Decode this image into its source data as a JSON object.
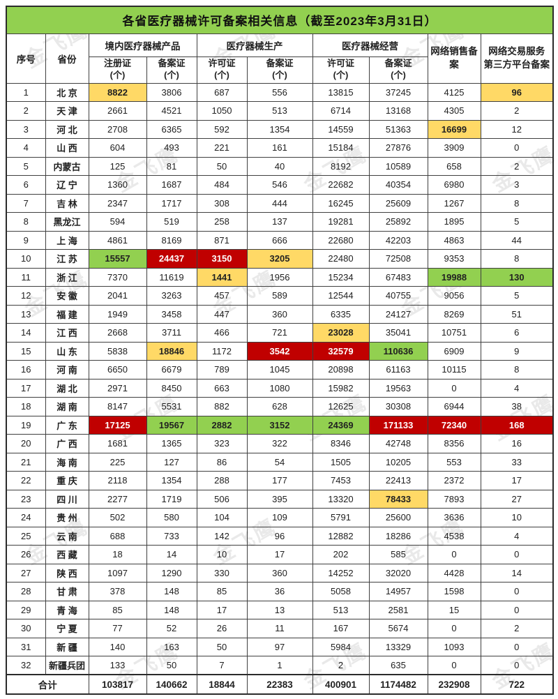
{
  "title": "各省医疗器械许可备案相关信息（截至2023年3月31日）",
  "watermark_text": "金飞鹰",
  "colors": {
    "title_green": "#92D050",
    "highlight_yellow": "#FFD966",
    "highlight_green": "#92D050",
    "highlight_red": "#C00000"
  },
  "header": {
    "col_no": "序号",
    "col_province": "省份",
    "group_domestic": "境内医疗器械产品",
    "group_production": "医疗器械生产",
    "group_operation": "医疗器械经营",
    "sub_registration": "注册证",
    "sub_record": "备案证",
    "sub_license": "许可证",
    "unit": "(个)",
    "col_online_sales": "网络销售备案",
    "col_platform_line1": "网络交易服务",
    "col_platform_line2": "第三方平台备案"
  },
  "chart_data": {
    "type": "table",
    "title": "各省医疗器械许可备案相关信息（截至2023年3月31日）",
    "columns": [
      "序号",
      "省份",
      "境内医疗器械产品-注册证(个)",
      "境内医疗器械产品-备案证(个)",
      "医疗器械生产-许可证(个)",
      "医疗器械生产-备案证(个)",
      "医疗器械经营-许可证(个)",
      "医疗器械经营-备案证(个)",
      "网络销售备案",
      "网络交易服务第三方平台备案"
    ],
    "highlight_colors": {
      "yellow": "#FFD966",
      "green": "#92D050",
      "red": "#C00000"
    },
    "rows": [
      {
        "no": "1",
        "province": "北 京",
        "values": [
          8822,
          3806,
          687,
          556,
          13815,
          37245,
          4125,
          96
        ],
        "highlights": {
          "0": "yellow",
          "7": "yellow"
        }
      },
      {
        "no": "2",
        "province": "天 津",
        "values": [
          2661,
          4521,
          1050,
          513,
          6714,
          13168,
          4305,
          2
        ]
      },
      {
        "no": "3",
        "province": "河 北",
        "values": [
          2708,
          6365,
          592,
          1354,
          14559,
          51363,
          16699,
          12
        ],
        "highlights": {
          "6": "yellow"
        }
      },
      {
        "no": "4",
        "province": "山 西",
        "values": [
          604,
          493,
          221,
          161,
          15184,
          27876,
          3909,
          0
        ]
      },
      {
        "no": "5",
        "province": "内蒙古",
        "values": [
          125,
          81,
          50,
          40,
          8192,
          10589,
          658,
          2
        ]
      },
      {
        "no": "6",
        "province": "辽 宁",
        "values": [
          1360,
          1687,
          484,
          546,
          22682,
          40354,
          6980,
          3
        ]
      },
      {
        "no": "7",
        "province": "吉 林",
        "values": [
          2347,
          1717,
          308,
          444,
          16245,
          25609,
          1267,
          8
        ]
      },
      {
        "no": "8",
        "province": "黑龙江",
        "values": [
          594,
          519,
          258,
          137,
          19281,
          25892,
          1895,
          5
        ]
      },
      {
        "no": "9",
        "province": "上 海",
        "values": [
          4861,
          8169,
          871,
          666,
          22680,
          42203,
          4863,
          44
        ]
      },
      {
        "no": "10",
        "province": "江 苏",
        "values": [
          15557,
          24437,
          3150,
          3205,
          22480,
          72508,
          9353,
          8
        ],
        "highlights": {
          "0": "green",
          "1": "red",
          "2": "red",
          "3": "yellow"
        }
      },
      {
        "no": "11",
        "province": "浙 江",
        "values": [
          7370,
          11619,
          1441,
          1956,
          15234,
          67483,
          19988,
          130
        ],
        "highlights": {
          "2": "yellow",
          "6": "green",
          "7": "green"
        }
      },
      {
        "no": "12",
        "province": "安 徽",
        "values": [
          2041,
          3263,
          457,
          589,
          12544,
          40755,
          9056,
          5
        ]
      },
      {
        "no": "13",
        "province": "福 建",
        "values": [
          1949,
          3458,
          447,
          360,
          6335,
          24127,
          8269,
          51
        ]
      },
      {
        "no": "14",
        "province": "江 西",
        "values": [
          2668,
          3711,
          466,
          721,
          23028,
          35041,
          10751,
          6
        ],
        "highlights": {
          "4": "yellow"
        }
      },
      {
        "no": "15",
        "province": "山 东",
        "values": [
          5838,
          18846,
          1172,
          3542,
          32579,
          110636,
          6909,
          9
        ],
        "highlights": {
          "1": "yellow",
          "3": "red",
          "4": "red",
          "5": "green"
        }
      },
      {
        "no": "16",
        "province": "河 南",
        "values": [
          6650,
          6679,
          789,
          1045,
          20898,
          61163,
          10115,
          8
        ]
      },
      {
        "no": "17",
        "province": "湖 北",
        "values": [
          2971,
          8450,
          663,
          1080,
          15982,
          19563,
          0,
          4
        ]
      },
      {
        "no": "18",
        "province": "湖 南",
        "values": [
          8147,
          5531,
          882,
          628,
          12625,
          30308,
          6944,
          38
        ]
      },
      {
        "no": "19",
        "province": "广 东",
        "values": [
          17125,
          19567,
          2882,
          3152,
          24369,
          171133,
          72340,
          168
        ],
        "highlights": {
          "0": "red",
          "1": "green",
          "2": "green",
          "3": "green",
          "4": "green",
          "5": "red",
          "6": "red",
          "7": "red"
        }
      },
      {
        "no": "20",
        "province": "广 西",
        "values": [
          1681,
          1365,
          323,
          322,
          8346,
          42748,
          8356,
          16
        ]
      },
      {
        "no": "21",
        "province": "海 南",
        "values": [
          225,
          127,
          86,
          54,
          1505,
          10205,
          553,
          33
        ]
      },
      {
        "no": "22",
        "province": "重 庆",
        "values": [
          2118,
          1354,
          288,
          177,
          7453,
          22413,
          2372,
          17
        ]
      },
      {
        "no": "23",
        "province": "四 川",
        "values": [
          2277,
          1719,
          506,
          395,
          13320,
          78433,
          7893,
          27
        ],
        "highlights": {
          "5": "yellow"
        }
      },
      {
        "no": "24",
        "province": "贵 州",
        "values": [
          502,
          580,
          104,
          109,
          5791,
          25600,
          3636,
          10
        ]
      },
      {
        "no": "25",
        "province": "云 南",
        "values": [
          688,
          733,
          142,
          96,
          12882,
          18286,
          4538,
          4
        ]
      },
      {
        "no": "26",
        "province": "西 藏",
        "values": [
          18,
          14,
          10,
          17,
          202,
          585,
          0,
          0
        ]
      },
      {
        "no": "27",
        "province": "陕 西",
        "values": [
          1097,
          1290,
          330,
          360,
          14252,
          32020,
          4428,
          14
        ]
      },
      {
        "no": "28",
        "province": "甘 肃",
        "values": [
          378,
          148,
          85,
          36,
          5058,
          14957,
          1598,
          0
        ]
      },
      {
        "no": "29",
        "province": "青 海",
        "values": [
          85,
          148,
          17,
          13,
          513,
          2581,
          15,
          0
        ]
      },
      {
        "no": "30",
        "province": "宁 夏",
        "values": [
          77,
          52,
          26,
          11,
          167,
          5674,
          0,
          2
        ]
      },
      {
        "no": "31",
        "province": "新 疆",
        "values": [
          140,
          163,
          50,
          97,
          5984,
          13329,
          1093,
          0
        ]
      },
      {
        "no": "32",
        "province": "新疆兵团",
        "values": [
          133,
          50,
          7,
          1,
          2,
          635,
          0,
          0
        ]
      }
    ],
    "total": {
      "label": "合计",
      "values": [
        103817,
        140662,
        18844,
        22383,
        400901,
        1174482,
        232908,
        722
      ]
    }
  }
}
